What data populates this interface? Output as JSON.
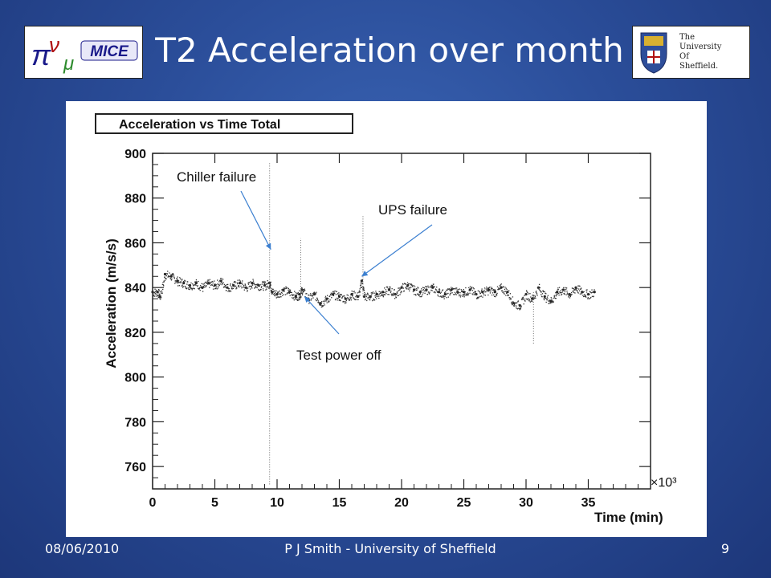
{
  "slide": {
    "title": "T2 Acceleration over month",
    "footer_date": "08/06/2010",
    "footer_author": "P J Smith - University of Sheffield",
    "page_number": "9"
  },
  "logos": {
    "mice_text": "MICE",
    "sheffield_lines": [
      "The",
      "University",
      "Of",
      "Sheffield."
    ]
  },
  "chart_data": {
    "type": "scatter",
    "title": "Acceleration vs Time Total",
    "xlabel": "Time (min)",
    "ylabel": "Acceleration (m/s/s)",
    "x_multiplier_label": "×10³",
    "xlim": [
      0,
      40
    ],
    "ylim": [
      750,
      900
    ],
    "x_ticks": [
      0,
      5,
      10,
      15,
      20,
      25,
      30,
      35
    ],
    "y_ticks": [
      760,
      780,
      800,
      820,
      840,
      860,
      880,
      900
    ],
    "series": [
      {
        "x": [
          0.0,
          0.4,
          0.6,
          1.0,
          1.5,
          2.0,
          2.5,
          3.0,
          3.5,
          4.0,
          4.5,
          5.0,
          5.5,
          6.0,
          6.5,
          7.0,
          7.5,
          8.0,
          8.5,
          9.0,
          9.4,
          9.6,
          10.0,
          10.5,
          11.0,
          11.5,
          11.8,
          12.0,
          12.5,
          13.0,
          13.5,
          14.0,
          14.5,
          15.0,
          15.5,
          16.0,
          16.5,
          16.8,
          17.0,
          17.5,
          18.0,
          18.5,
          19.0,
          19.5,
          20.0,
          20.5,
          21.0,
          21.5,
          22.0,
          22.5,
          23.0,
          23.5,
          24.0,
          24.5,
          25.0,
          25.5,
          26.0,
          26.5,
          27.0,
          27.5,
          28.0,
          28.5,
          29.0,
          29.5,
          30.0,
          30.5,
          31.0,
          31.5,
          32.0,
          32.5,
          33.0,
          33.5,
          34.0,
          34.5,
          35.0,
          35.5
        ],
        "y": [
          838,
          838,
          836,
          846,
          845,
          843,
          842,
          841,
          842,
          840,
          842,
          841,
          843,
          840,
          841,
          842,
          840,
          842,
          841,
          841,
          842,
          838,
          837,
          839,
          838,
          836,
          837,
          839,
          835,
          837,
          833,
          835,
          837,
          836,
          835,
          837,
          836,
          843,
          836,
          836,
          837,
          838,
          839,
          837,
          840,
          841,
          839,
          838,
          839,
          840,
          838,
          837,
          839,
          838,
          838,
          839,
          837,
          838,
          839,
          838,
          840,
          838,
          833,
          832,
          837,
          835,
          840,
          836,
          834,
          838,
          839,
          837,
          840,
          838,
          837,
          838
        ]
      }
    ],
    "annotations": [
      {
        "text": "Chiller failure",
        "x": 9.5,
        "y": 857
      },
      {
        "text": "UPS failure",
        "x": 16.8,
        "y": 845
      },
      {
        "text": "Test power off",
        "x": 12.2,
        "y": 836
      }
    ]
  }
}
